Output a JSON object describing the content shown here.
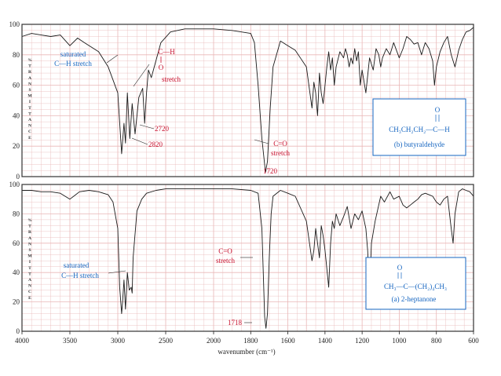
{
  "colors": {
    "grid": "#e9b7b7",
    "frame": "#333333",
    "trace": "#1a1a1a",
    "red": "#c8102e",
    "blue": "#1565c0"
  },
  "shared": {
    "ylabel_letters": [
      "%",
      "T",
      "R",
      "A",
      "N",
      "S",
      "M",
      "I",
      "T",
      "T",
      "A",
      "N",
      "C",
      "E"
    ],
    "y_ticks": [
      "0",
      "20",
      "40",
      "60",
      "80",
      "100"
    ],
    "x_ticks": [
      4000,
      3500,
      3000,
      2500,
      2000,
      1800,
      1600,
      1400,
      1200,
      1000,
      800,
      600
    ],
    "xlabel": "wavenumber (cm⁻¹)"
  },
  "chart_data": [
    {
      "type": "line",
      "panel": "top",
      "compound": "(b) butyraldehyde",
      "structure": {
        "o": "O",
        "formula": "CH₃CH₂CH₂—C—H"
      },
      "annotations": {
        "sat1": "saturated",
        "sat2": "C—H  stretch",
        "ch_h": "C—H",
        "ch_o": "O",
        "ch_stretch": "stretch",
        "co1": "C=O",
        "co2": "stretch",
        "p2720": "2720",
        "p2820": "2820",
        "p1720": "1720"
      },
      "x": [
        4000,
        3900,
        3800,
        3700,
        3600,
        3500,
        3420,
        3350,
        3200,
        3100,
        3000,
        2960,
        2935,
        2920,
        2900,
        2875,
        2850,
        2820,
        2780,
        2740,
        2720,
        2700,
        2680,
        2650,
        2550,
        2450,
        2300,
        2100,
        2000,
        1900,
        1800,
        1780,
        1760,
        1740,
        1725,
        1720,
        1710,
        1695,
        1680,
        1640,
        1600,
        1560,
        1500,
        1470,
        1460,
        1450,
        1440,
        1430,
        1420,
        1410,
        1400,
        1390,
        1380,
        1370,
        1360,
        1350,
        1340,
        1320,
        1300,
        1290,
        1280,
        1270,
        1260,
        1250,
        1240,
        1230,
        1220,
        1210,
        1200,
        1180,
        1160,
        1140,
        1125,
        1110,
        1100,
        1090,
        1070,
        1050,
        1030,
        1000,
        980,
        960,
        940,
        920,
        900,
        880,
        860,
        840,
        820,
        810,
        800,
        780,
        760,
        740,
        720,
        700,
        680,
        660,
        640,
        620,
        600
      ],
      "y": [
        92,
        94,
        93,
        92,
        93,
        86,
        91,
        88,
        82,
        72,
        55,
        15,
        35,
        22,
        55,
        25,
        48,
        28,
        52,
        58,
        35,
        55,
        70,
        65,
        88,
        95,
        97,
        97,
        97,
        96,
        94,
        88,
        60,
        25,
        8,
        3,
        10,
        45,
        72,
        89,
        86,
        83,
        72,
        45,
        62,
        55,
        40,
        68,
        55,
        48,
        60,
        72,
        82,
        70,
        78,
        60,
        72,
        82,
        78,
        84,
        80,
        72,
        78,
        74,
        84,
        76,
        82,
        60,
        70,
        55,
        78,
        70,
        84,
        80,
        72,
        78,
        84,
        80,
        88,
        78,
        84,
        92,
        90,
        87,
        88,
        80,
        88,
        84,
        76,
        60,
        72,
        82,
        88,
        92,
        80,
        72,
        83,
        90,
        95,
        96,
        98
      ]
    },
    {
      "type": "line",
      "panel": "bottom",
      "compound": "(a) 2-heptanone",
      "structure": {
        "o": "O",
        "formula": "CH₃—C—(CH₂)₄CH₃"
      },
      "annotations": {
        "sat1": "saturated",
        "sat2": "C—H  stretch",
        "co1": "C=O",
        "co2": "stretch",
        "p1718": "1718"
      },
      "x": [
        4000,
        3900,
        3800,
        3700,
        3600,
        3500,
        3440,
        3400,
        3300,
        3200,
        3100,
        3050,
        3000,
        2980,
        2960,
        2950,
        2935,
        2920,
        2900,
        2880,
        2860,
        2850,
        2840,
        2800,
        2750,
        2700,
        2600,
        2500,
        2300,
        2100,
        2000,
        1900,
        1800,
        1760,
        1740,
        1725,
        1718,
        1710,
        1700,
        1690,
        1680,
        1640,
        1600,
        1560,
        1500,
        1470,
        1460,
        1450,
        1440,
        1430,
        1420,
        1410,
        1400,
        1380,
        1370,
        1360,
        1350,
        1340,
        1320,
        1300,
        1280,
        1260,
        1240,
        1220,
        1200,
        1180,
        1170,
        1160,
        1150,
        1130,
        1100,
        1080,
        1050,
        1030,
        1000,
        980,
        960,
        940,
        920,
        900,
        880,
        860,
        840,
        820,
        800,
        780,
        760,
        740,
        720,
        710,
        700,
        680,
        660,
        640,
        620,
        600
      ],
      "y": [
        96,
        96,
        95,
        95,
        94,
        90,
        93,
        95,
        96,
        95,
        93,
        88,
        70,
        30,
        12,
        20,
        35,
        15,
        40,
        28,
        30,
        26,
        50,
        82,
        90,
        94,
        96,
        97,
        97,
        97,
        97,
        97,
        96,
        94,
        70,
        10,
        2,
        12,
        50,
        80,
        92,
        96,
        94,
        92,
        75,
        48,
        55,
        70,
        60,
        50,
        72,
        65,
        55,
        30,
        60,
        75,
        70,
        80,
        72,
        78,
        85,
        70,
        80,
        76,
        82,
        70,
        55,
        28,
        60,
        75,
        92,
        88,
        95,
        90,
        92,
        86,
        84,
        86,
        88,
        90,
        93,
        94,
        93,
        92,
        88,
        86,
        90,
        92,
        70,
        60,
        80,
        95,
        97,
        96,
        95,
        92
      ]
    }
  ]
}
